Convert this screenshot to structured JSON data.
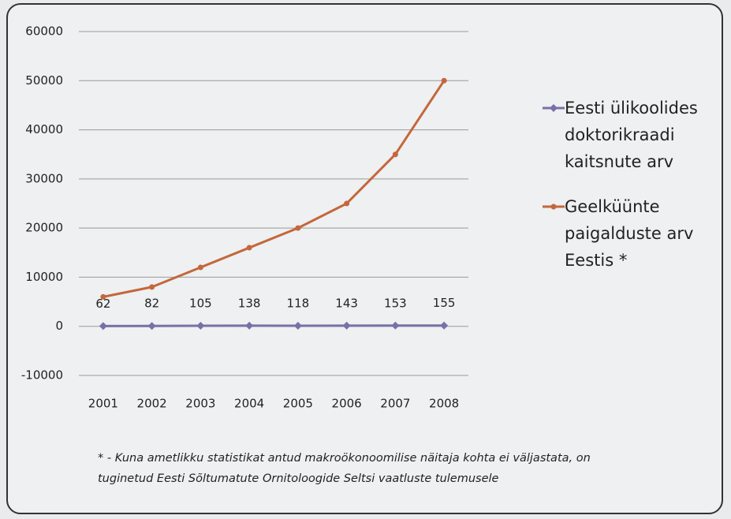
{
  "chart_data": {
    "type": "line",
    "categories": [
      "2001",
      "2002",
      "2003",
      "2004",
      "2005",
      "2006",
      "2007",
      "2008"
    ],
    "series": [
      {
        "name": "Eesti ülikoolides doktorikraadi kaitsnute arv",
        "color": "#7b6fa8",
        "values": [
          62,
          82,
          105,
          138,
          118,
          143,
          153,
          155
        ],
        "data_labels": true
      },
      {
        "name": "Geelküünte paigalduste arv Eestis *",
        "color": "#c4673b",
        "values": [
          6000,
          8000,
          12000,
          16000,
          20000,
          25000,
          35000,
          50000
        ]
      }
    ],
    "ylim": [
      -10000,
      60000
    ],
    "yticks": [
      -10000,
      0,
      10000,
      20000,
      30000,
      40000,
      50000,
      60000
    ],
    "grid": true,
    "legend": "right",
    "footnote": "* - Kuna ametlikku statistikat antud makroökonoomilise näitaja kohta ei väljastata, on tuginetud Eesti Sõltumatute Ornitoloogide Seltsi vaatluste tulemusele"
  }
}
